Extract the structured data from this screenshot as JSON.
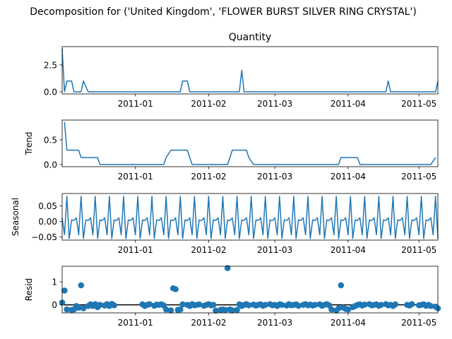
{
  "figure": {
    "suptitle": "Decomposition for ('United Kingdom', 'FLOWER BURST SILVER RING CRYSTAL')",
    "panel_title": "Quantity"
  },
  "colors": {
    "line": "#1f77b4",
    "zero_line": "#000000"
  },
  "chart_data": [
    {
      "type": "line",
      "name": "observed",
      "title": "Quantity",
      "ylabel": "",
      "xlim": [
        "2010-12-01",
        "2011-05-09"
      ],
      "ylim": [
        -0.2,
        4.2
      ],
      "yticks": [
        0.0,
        2.5
      ],
      "ytick_labels": [
        "0.0",
        "2.5"
      ],
      "xticks": [
        "2011-01-01",
        "2011-02-01",
        "2011-03-01",
        "2011-04-01",
        "2011-05-01"
      ],
      "xtick_labels": [
        "2011-01",
        "2011-02",
        "2011-03",
        "2011-04",
        "2011-05"
      ],
      "x": [
        "2010-12-01",
        "2010-12-02",
        "2010-12-03",
        "2010-12-05",
        "2010-12-06",
        "2010-12-07",
        "2010-12-08",
        "2010-12-09",
        "2010-12-10",
        "2010-12-12",
        "2010-12-13",
        "2010-12-14",
        "2010-12-15",
        "2010-12-16",
        "2010-12-17",
        "2010-12-19",
        "2010-12-20",
        "2010-12-21",
        "2010-12-22",
        "2010-12-23",
        "2011-01-04",
        "2011-01-05",
        "2011-01-06",
        "2011-01-07",
        "2011-01-09",
        "2011-01-10",
        "2011-01-11",
        "2011-01-12",
        "2011-01-13",
        "2011-01-14",
        "2011-01-16",
        "2011-01-17",
        "2011-01-18",
        "2011-01-19",
        "2011-01-20",
        "2011-01-21",
        "2011-01-23",
        "2011-01-24",
        "2011-01-25",
        "2011-01-26",
        "2011-01-27",
        "2011-01-28",
        "2011-01-30",
        "2011-01-31",
        "2011-02-01",
        "2011-02-02",
        "2011-02-03",
        "2011-02-04",
        "2011-02-06",
        "2011-02-07",
        "2011-02-08",
        "2011-02-09",
        "2011-02-10",
        "2011-02-11",
        "2011-02-13",
        "2011-02-14",
        "2011-02-15",
        "2011-02-16",
        "2011-02-17",
        "2011-02-18",
        "2011-02-20",
        "2011-02-21",
        "2011-02-22",
        "2011-02-23",
        "2011-02-24",
        "2011-02-25",
        "2011-02-27",
        "2011-02-28",
        "2011-03-01",
        "2011-03-02",
        "2011-03-03",
        "2011-03-04",
        "2011-03-06",
        "2011-03-07",
        "2011-03-08",
        "2011-03-09",
        "2011-03-10",
        "2011-03-11",
        "2011-03-13",
        "2011-03-14",
        "2011-03-15",
        "2011-03-16",
        "2011-03-17",
        "2011-03-18",
        "2011-03-20",
        "2011-03-21",
        "2011-03-22",
        "2011-03-23",
        "2011-03-24",
        "2011-03-25",
        "2011-03-27",
        "2011-03-28",
        "2011-03-29",
        "2011-03-30",
        "2011-03-31",
        "2011-04-01",
        "2011-04-03",
        "2011-04-04",
        "2011-04-05",
        "2011-04-06",
        "2011-04-07",
        "2011-04-08",
        "2011-04-10",
        "2011-04-11",
        "2011-04-12",
        "2011-04-13",
        "2011-04-14",
        "2011-04-15",
        "2011-04-17",
        "2011-04-18",
        "2011-04-19",
        "2011-04-20",
        "2011-04-21",
        "2011-04-26",
        "2011-04-27",
        "2011-04-28",
        "2011-05-01",
        "2011-05-02",
        "2011-05-03",
        "2011-05-04",
        "2011-05-05",
        "2011-05-06",
        "2011-05-08",
        "2011-05-09"
      ],
      "y": [
        4,
        0,
        1,
        1,
        0,
        0,
        0,
        0,
        1,
        0,
        0,
        0,
        0,
        0,
        0,
        0,
        0,
        0,
        0,
        0,
        0,
        0,
        0,
        0,
        0,
        0,
        0,
        0,
        0,
        0,
        0,
        0,
        0,
        0,
        0,
        1,
        1,
        0,
        0,
        0,
        0,
        0,
        0,
        0,
        0,
        0,
        0,
        0,
        0,
        0,
        0,
        0,
        0,
        0,
        0,
        0,
        2,
        0,
        0,
        0,
        0,
        0,
        0,
        0,
        0,
        0,
        0,
        0,
        0,
        0,
        0,
        0,
        0,
        0,
        0,
        0,
        0,
        0,
        0,
        0,
        0,
        0,
        0,
        0,
        0,
        0,
        0,
        0,
        0,
        0,
        0,
        0,
        0,
        0,
        0,
        0,
        0,
        0,
        0,
        0,
        0,
        0,
        0,
        0,
        0,
        0,
        0,
        0,
        0,
        1,
        0,
        0,
        0,
        0,
        0,
        0,
        0,
        0,
        0,
        0,
        0,
        0,
        0,
        1
      ]
    },
    {
      "type": "line",
      "name": "trend",
      "ylabel": "Trend",
      "xlim": [
        "2010-12-01",
        "2011-05-09"
      ],
      "ylim": [
        -0.045,
        0.9
      ],
      "yticks": [
        0.0,
        0.5
      ],
      "ytick_labels": [
        "0.0",
        "0.5"
      ],
      "xtick_labels": [
        "2011-01",
        "2011-02",
        "2011-03",
        "2011-04",
        "2011-05"
      ],
      "x": [
        "2010-12-02",
        "2010-12-03",
        "2010-12-05",
        "2010-12-06",
        "2010-12-07",
        "2010-12-08",
        "2010-12-09",
        "2010-12-10",
        "2010-12-12",
        "2010-12-13",
        "2010-12-14",
        "2010-12-15",
        "2010-12-16",
        "2010-12-17",
        "2010-12-19",
        "2011-01-13",
        "2011-01-14",
        "2011-01-16",
        "2011-01-17",
        "2011-01-18",
        "2011-01-19",
        "2011-01-20",
        "2011-01-21",
        "2011-01-23",
        "2011-01-24",
        "2011-01-25",
        "2011-02-09",
        "2011-02-10",
        "2011-02-11",
        "2011-02-13",
        "2011-02-14",
        "2011-02-15",
        "2011-02-16",
        "2011-02-17",
        "2011-02-18",
        "2011-02-20",
        "2011-03-28",
        "2011-03-29",
        "2011-03-30",
        "2011-03-31",
        "2011-04-01",
        "2011-04-03",
        "2011-04-04",
        "2011-04-05",
        "2011-04-06",
        "2011-05-06",
        "2011-05-08"
      ],
      "y": [
        0.86,
        0.29,
        0.29,
        0.29,
        0.29,
        0.29,
        0.14,
        0.14,
        0.14,
        0.14,
        0.14,
        0.14,
        0.14,
        0,
        0,
        0,
        0.14,
        0.29,
        0.29,
        0.29,
        0.29,
        0.29,
        0.29,
        0.29,
        0.14,
        0,
        0,
        0.14,
        0.29,
        0.29,
        0.29,
        0.29,
        0.29,
        0.29,
        0.14,
        0,
        0,
        0.14,
        0.14,
        0.14,
        0.14,
        0.14,
        0.14,
        0.14,
        0,
        0,
        0.14
      ]
    },
    {
      "type": "line",
      "name": "seasonal",
      "ylabel": "Seasonal",
      "xlim": [
        "2010-12-01",
        "2011-05-09"
      ],
      "ylim": [
        -0.06,
        0.09
      ],
      "yticks": [
        -0.05,
        0.0,
        0.05
      ],
      "ytick_labels": [
        "−0.05",
        "0.00",
        "0.05"
      ],
      "xtick_labels": [
        "2011-01",
        "2011-02",
        "2011-03",
        "2011-04",
        "2011-05"
      ],
      "period": 6,
      "pattern": [
        0.012,
        -0.043,
        0.081,
        -0.055,
        0.005,
        0.003
      ]
    },
    {
      "type": "scatter",
      "name": "resid",
      "ylabel": "Resid",
      "xlim": [
        "2010-12-01",
        "2011-05-09"
      ],
      "ylim": [
        -0.35,
        1.68
      ],
      "yticks": [
        0,
        1
      ],
      "ytick_labels": [
        "0",
        "1"
      ],
      "baseline": 0,
      "xtick_labels": [
        "2011-01",
        "2011-02",
        "2011-03",
        "2011-04",
        "2011-05"
      ],
      "x": [
        "2010-12-01",
        "2010-12-02",
        "2010-12-03",
        "2010-12-05",
        "2010-12-06",
        "2010-12-07",
        "2010-12-08",
        "2010-12-09",
        "2010-12-10",
        "2010-12-12",
        "2010-12-13",
        "2010-12-14",
        "2010-12-15",
        "2010-12-16",
        "2010-12-17",
        "2010-12-19",
        "2010-12-20",
        "2010-12-21",
        "2010-12-22",
        "2010-12-23",
        "2011-01-04",
        "2011-01-05",
        "2011-01-06",
        "2011-01-07",
        "2011-01-09",
        "2011-01-10",
        "2011-01-11",
        "2011-01-12",
        "2011-01-13",
        "2011-01-14",
        "2011-01-16",
        "2011-01-17",
        "2011-01-18",
        "2011-01-19",
        "2011-01-20",
        "2011-01-21",
        "2011-01-23",
        "2011-01-24",
        "2011-01-25",
        "2011-01-26",
        "2011-01-27",
        "2011-01-28",
        "2011-01-30",
        "2011-01-31",
        "2011-02-01",
        "2011-02-02",
        "2011-02-03",
        "2011-02-04",
        "2011-02-06",
        "2011-02-07",
        "2011-02-08",
        "2011-02-09",
        "2011-02-10",
        "2011-02-11",
        "2011-02-13",
        "2011-02-14",
        "2011-02-15",
        "2011-02-16",
        "2011-02-17",
        "2011-02-18",
        "2011-02-20",
        "2011-02-21",
        "2011-02-22",
        "2011-02-23",
        "2011-02-24",
        "2011-02-25",
        "2011-02-27",
        "2011-02-28",
        "2011-03-01",
        "2011-03-02",
        "2011-03-03",
        "2011-03-04",
        "2011-03-06",
        "2011-03-07",
        "2011-03-08",
        "2011-03-09",
        "2011-03-10",
        "2011-03-11",
        "2011-03-13",
        "2011-03-14",
        "2011-03-15",
        "2011-03-16",
        "2011-03-17",
        "2011-03-18",
        "2011-03-20",
        "2011-03-21",
        "2011-03-22",
        "2011-03-23",
        "2011-03-24",
        "2011-03-25",
        "2011-03-27",
        "2011-03-28",
        "2011-03-29",
        "2011-03-30",
        "2011-03-31",
        "2011-04-01",
        "2011-04-03",
        "2011-04-04",
        "2011-04-05",
        "2011-04-06",
        "2011-04-07",
        "2011-04-08",
        "2011-04-10",
        "2011-04-11",
        "2011-04-12",
        "2011-04-13",
        "2011-04-14",
        "2011-04-15",
        "2011-04-17",
        "2011-04-18",
        "2011-04-19",
        "2011-04-20",
        "2011-04-21",
        "2011-04-26",
        "2011-04-27",
        "2011-04-28",
        "2011-05-01",
        "2011-05-02",
        "2011-05-03",
        "2011-05-04",
        "2011-05-05",
        "2011-05-06",
        "2011-05-08",
        "2011-05-09"
      ],
      "y": [
        0.1,
        0.62,
        -0.2,
        -0.22,
        -0.2,
        -0.05,
        -0.12,
        0.85,
        -0.15,
        -0.05,
        0.02,
        -0.05,
        0.03,
        -0.1,
        0.0,
        -0.03,
        0.03,
        -0.05,
        0.04,
        -0.02,
        0.02,
        -0.05,
        0.0,
        0.03,
        -0.04,
        0.01,
        0.0,
        0.02,
        -0.03,
        -0.2,
        -0.24,
        0.72,
        0.68,
        -0.22,
        -0.2,
        0.02,
        0.0,
        -0.05,
        0.03,
        -0.02,
        0.0,
        0.02,
        -0.04,
        0.0,
        0.03,
        -0.02,
        0.0,
        -0.25,
        -0.22,
        -0.2,
        -0.22,
        1.6,
        -0.2,
        -0.24,
        -0.22,
        0.02,
        -0.05,
        0.0,
        0.03,
        -0.02,
        0.01,
        -0.03,
        0.0,
        0.02,
        -0.04,
        0.0,
        0.03,
        -0.02,
        0.0,
        -0.05,
        0.02,
        0.0,
        -0.03,
        0.03,
        -0.02,
        0.0,
        0.02,
        -0.04,
        0.0,
        0.03,
        -0.02,
        0.01,
        -0.03,
        0.0,
        0.02,
        -0.04,
        0.0,
        0.03,
        -0.02,
        -0.2,
        -0.25,
        -0.15,
        0.85,
        -0.12,
        -0.18,
        -0.2,
        -0.1,
        -0.05,
        0.0,
        0.02,
        -0.03,
        0.01,
        0.03,
        -0.02,
        0.0,
        0.02,
        -0.04,
        0.0,
        0.03,
        -0.02,
        0.0,
        -0.05,
        0.02,
        0.0,
        -0.03,
        0.03,
        -0.02,
        0.0,
        0.02,
        -0.04,
        0.0,
        -0.05,
        -0.08,
        -0.15
      ]
    }
  ]
}
